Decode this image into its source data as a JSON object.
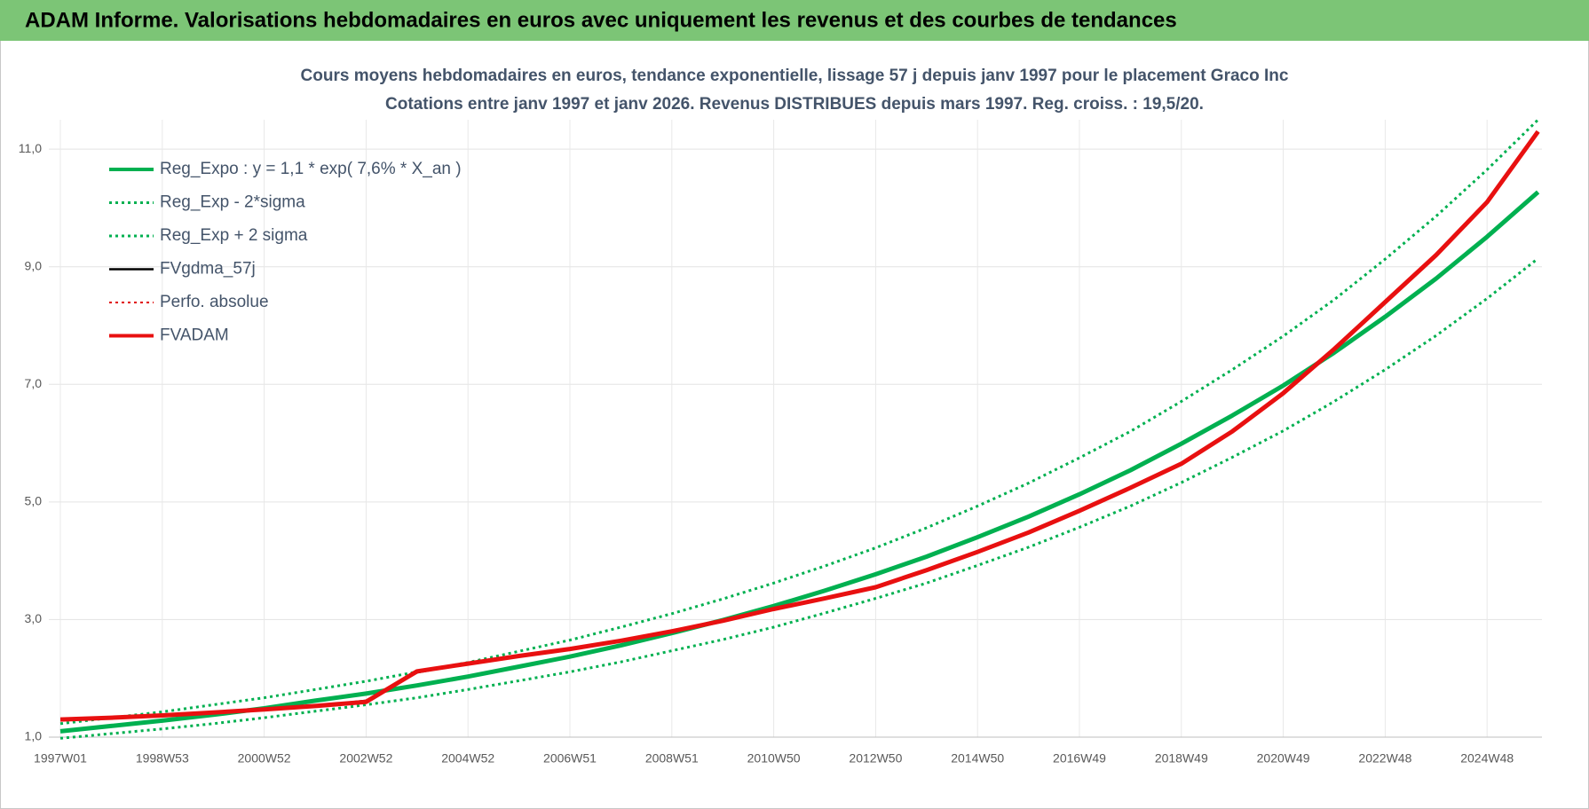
{
  "page_header": "ADAM Informe. Valorisations hebdomadaires en euros avec uniquement les revenus et des courbes de tendances",
  "chart_data": {
    "type": "line",
    "title": "Cours moyens hebdomadaires en euros, tendance exponentielle, lissage 57 j depuis janv 1997  pour le  placement Graco Inc",
    "subtitle": "Cotations entre janv 1997 et janv 2026. Revenus DISTRIBUES depuis mars 1997.  Reg. croiss. : 19,5/20.",
    "categories": [
      "1997W01",
      null,
      "1998W53",
      null,
      "2000W52",
      null,
      "2002W52",
      null,
      "2004W52",
      null,
      "2006W51",
      null,
      "2008W51",
      null,
      "2010W50",
      null,
      "2012W50",
      null,
      "2014W50",
      null,
      "2016W49",
      null,
      "2018W49",
      null,
      "2020W49",
      null,
      "2022W48",
      null,
      "2024W48",
      null
    ],
    "ylim": [
      1,
      11.5
    ],
    "yticks": [
      {
        "value": 1,
        "label": "1,0"
      },
      {
        "value": 3,
        "label": "3,0"
      },
      {
        "value": 5,
        "label": "5,0"
      },
      {
        "value": 7,
        "label": "7,0"
      },
      {
        "value": 9,
        "label": "9,0"
      },
      {
        "value": 11,
        "label": "11,0"
      }
    ],
    "grid": true,
    "series": [
      {
        "name": "Reg_Expo : y = 1,1 * exp( 7,6% *  X_an )",
        "color": "#00b050",
        "style": "solid",
        "width": 5,
        "values": [
          1.1,
          1.19,
          1.28,
          1.38,
          1.49,
          1.62,
          1.74,
          1.88,
          2.03,
          2.2,
          2.37,
          2.56,
          2.77,
          2.99,
          3.23,
          3.49,
          3.77,
          4.07,
          4.4,
          4.75,
          5.13,
          5.54,
          5.99,
          6.47,
          6.98,
          7.54,
          8.15,
          8.8,
          9.51,
          10.27
        ]
      },
      {
        "name": "Reg_Exp - 2*sigma",
        "color": "#00b050",
        "style": "dotted",
        "width": 3,
        "values": [
          0.98,
          1.06,
          1.14,
          1.23,
          1.33,
          1.44,
          1.55,
          1.67,
          1.81,
          1.96,
          2.11,
          2.28,
          2.47,
          2.66,
          2.87,
          3.11,
          3.36,
          3.62,
          3.92,
          4.23,
          4.57,
          4.93,
          5.33,
          5.76,
          6.21,
          6.71,
          7.25,
          7.83,
          8.46,
          9.14
        ]
      },
      {
        "name": "Reg_Exp + 2 sigma",
        "color": "#00b050",
        "style": "dotted",
        "width": 3,
        "values": [
          1.23,
          1.33,
          1.43,
          1.55,
          1.67,
          1.81,
          1.95,
          2.11,
          2.27,
          2.46,
          2.65,
          2.87,
          3.1,
          3.35,
          3.62,
          3.91,
          4.22,
          4.56,
          4.93,
          5.32,
          5.75,
          6.2,
          6.71,
          7.25,
          7.82,
          8.44,
          9.13,
          9.86,
          10.65,
          11.5
        ]
      },
      {
        "name": "FVgdma_57j",
        "color": "#000000",
        "style": "solid",
        "width": 2.5,
        "values": [
          1.3,
          1.33,
          1.37,
          1.42,
          1.47,
          1.53,
          1.62,
          2.1,
          2.25,
          2.38,
          2.5,
          2.64,
          2.8,
          2.98,
          3.18,
          3.36,
          3.55,
          3.84,
          4.15,
          4.48,
          4.85,
          5.24,
          5.65,
          6.2,
          6.85,
          7.6,
          8.4,
          9.2,
          10.1,
          11.3
        ]
      },
      {
        "name": "Perfo. absolue",
        "color": "#e00000",
        "style": "dotted",
        "width": 2,
        "values": [
          1.3,
          1.33,
          1.37,
          1.42,
          1.47,
          1.53,
          1.6,
          2.12,
          2.25,
          2.38,
          2.5,
          2.64,
          2.8,
          2.98,
          3.18,
          3.36,
          3.55,
          3.84,
          4.15,
          4.48,
          4.85,
          5.24,
          5.65,
          6.2,
          6.85,
          7.6,
          8.4,
          9.2,
          10.1,
          11.3
        ]
      },
      {
        "name": "FVADAM",
        "color": "#e81010",
        "style": "solid",
        "width": 5,
        "values": [
          1.3,
          1.33,
          1.37,
          1.42,
          1.47,
          1.53,
          1.6,
          2.12,
          2.25,
          2.38,
          2.5,
          2.64,
          2.8,
          2.98,
          3.18,
          3.36,
          3.55,
          3.84,
          4.15,
          4.48,
          4.85,
          5.24,
          5.65,
          6.2,
          6.85,
          7.6,
          8.4,
          9.2,
          10.1,
          11.3
        ]
      }
    ]
  }
}
